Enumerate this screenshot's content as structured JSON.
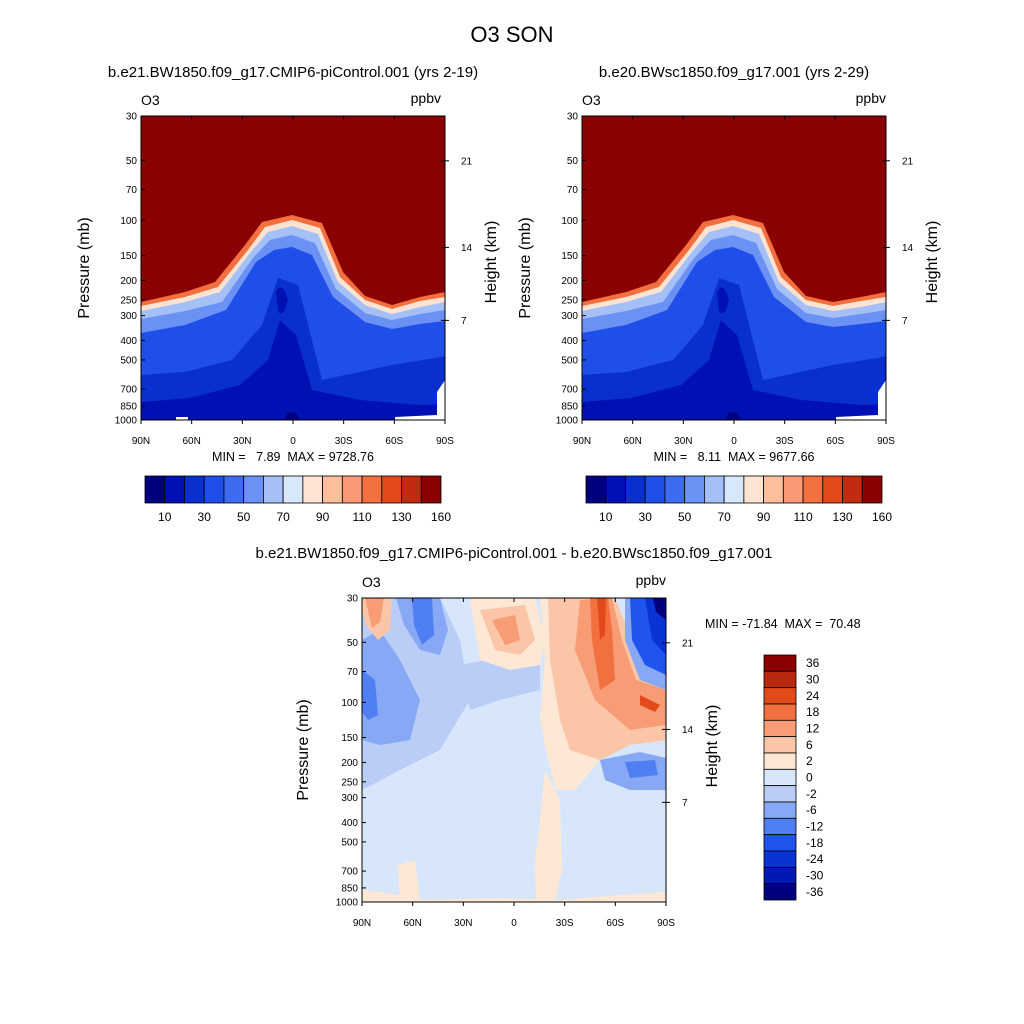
{
  "figure": {
    "title": "O3 SON"
  },
  "colors": {
    "abs": [
      "#00007f",
      "#0011b3",
      "#0a2fcf",
      "#1f4ee8",
      "#3d6bf2",
      "#6b91f5",
      "#a4c0f7",
      "#d8e8fb",
      "#fde4d2",
      "#fbbf9e",
      "#f79a75",
      "#f2703f",
      "#e24a1c",
      "#c22b10",
      "#8b0000"
    ],
    "diff": [
      "#00007f",
      "#0019b3",
      "#0a33d6",
      "#1f55ee",
      "#4f7ff3",
      "#87a9f5",
      "#b9cdf7",
      "#d7e6fb",
      "#fde8d6",
      "#fbc6a8",
      "#f89c75",
      "#f2703f",
      "#e24a1c",
      "#b8280f",
      "#8b0000"
    ]
  },
  "chart_data": [
    {
      "type": "heatmap",
      "title": "b.e21.BW1850.f09_g17.CMIP6-piControl.001 (yrs 2-19)",
      "left_label": "O3",
      "right_label": "ppbv",
      "ylabel": "Pressure (mb)",
      "ylabel_right": "Height (km)",
      "x_ticks": [
        "90N",
        "60N",
        "30N",
        "0",
        "30S",
        "60S",
        "90S"
      ],
      "y_ticks": [
        "30",
        "50",
        "70",
        "100",
        "150",
        "200",
        "250",
        "300",
        "400",
        "500",
        "700",
        "850",
        "1000"
      ],
      "y_right_ticks": [
        "21",
        "14",
        "7"
      ],
      "levels": [
        10,
        20,
        30,
        40,
        50,
        60,
        70,
        80,
        90,
        100,
        110,
        120,
        130,
        140,
        160
      ],
      "colorbar_labels": [
        "10",
        "30",
        "50",
        "70",
        "90",
        "110",
        "130",
        "160"
      ],
      "stats": "MIN =   7.89  MAX = 9728.76"
    },
    {
      "type": "heatmap",
      "title": "b.e20.BWsc1850.f09_g17.001 (yrs 2-29)",
      "left_label": "O3",
      "right_label": "ppbv",
      "ylabel": "Pressure (mb)",
      "ylabel_right": "Height (km)",
      "x_ticks": [
        "90N",
        "60N",
        "30N",
        "0",
        "30S",
        "60S",
        "90S"
      ],
      "y_ticks": [
        "30",
        "50",
        "70",
        "100",
        "150",
        "200",
        "250",
        "300",
        "400",
        "500",
        "700",
        "850",
        "1000"
      ],
      "y_right_ticks": [
        "21",
        "14",
        "7"
      ],
      "levels": [
        10,
        20,
        30,
        40,
        50,
        60,
        70,
        80,
        90,
        100,
        110,
        120,
        130,
        140,
        160
      ],
      "colorbar_labels": [
        "10",
        "30",
        "50",
        "70",
        "90",
        "110",
        "130",
        "160"
      ],
      "stats": "MIN =   8.11  MAX = 9677.66"
    },
    {
      "type": "heatmap",
      "title": "b.e21.BW1850.f09_g17.CMIP6-piControl.001 - b.e20.BWsc1850.f09_g17.001",
      "left_label": "O3",
      "right_label": "ppbv",
      "ylabel": "Pressure (mb)",
      "ylabel_right": "Height (km)",
      "x_ticks": [
        "90N",
        "60N",
        "30N",
        "0",
        "30S",
        "60S",
        "90S"
      ],
      "y_ticks": [
        "30",
        "50",
        "70",
        "100",
        "150",
        "200",
        "250",
        "300",
        "400",
        "500",
        "700",
        "850",
        "1000"
      ],
      "y_right_ticks": [
        "21",
        "14",
        "7"
      ],
      "levels": [
        -36,
        -30,
        -24,
        -18,
        -12,
        -6,
        -2,
        0,
        2,
        6,
        12,
        18,
        24,
        30,
        36
      ],
      "colorbar_labels": [
        "36",
        "30",
        "24",
        "18",
        "12",
        "6",
        "2",
        "0",
        "-2",
        "-6",
        "-12",
        "-18",
        "-24",
        "-30",
        "-36"
      ],
      "stats": "MIN = -71.84  MAX =  70.48"
    }
  ]
}
